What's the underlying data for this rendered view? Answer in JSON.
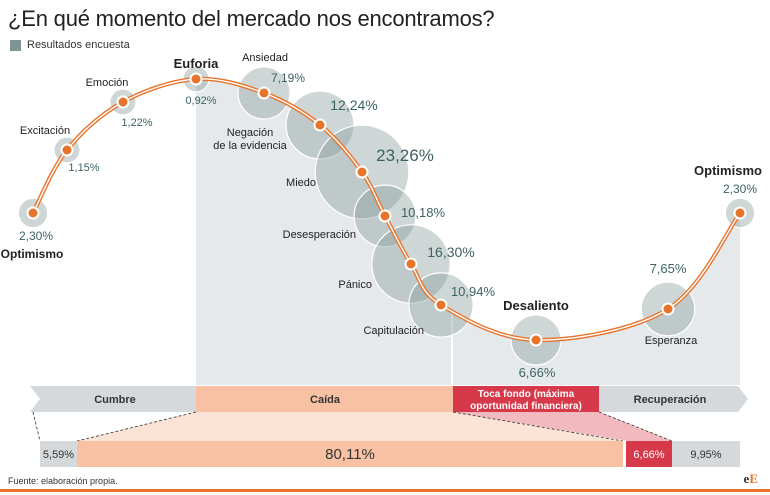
{
  "title": "¿En qué momento del mercado nos encontramos?",
  "legend": {
    "label": "Resultados encuesta",
    "color": "#7f9494"
  },
  "source": "Fuente: elaboración propia.",
  "brand": {
    "prefix": "e",
    "accent": "E"
  },
  "colors": {
    "curve": "#e8742c",
    "bubble": "#8a9d9d",
    "value_text": "#3d6262",
    "phase_grey": "#d5d9dc",
    "phase_caida": "#f8c1a3",
    "phase_fondo": "#d63a4a"
  },
  "chart_data": {
    "type": "scatter",
    "title": "¿En qué momento del mercado nos encontramos?",
    "series": [
      {
        "name": "Resultados encuesta"
      }
    ],
    "points": [
      {
        "stage": "Optimismo",
        "value": 2.3,
        "label": "2,30%"
      },
      {
        "stage": "Excitación",
        "value": 1.15,
        "label": "1,15%"
      },
      {
        "stage": "Emoción",
        "value": 1.22,
        "label": "1,22%"
      },
      {
        "stage": "Euforia",
        "value": 0.92,
        "label": "0,92%"
      },
      {
        "stage": "Ansiedad",
        "value": 7.19,
        "label": "7,19%"
      },
      {
        "stage": "Negación de la evidencia",
        "value": 12.24,
        "label": "12,24%"
      },
      {
        "stage": "Miedo",
        "value": 23.26,
        "label": "23,26%"
      },
      {
        "stage": "Desesperación",
        "value": 10.18,
        "label": "10,18%"
      },
      {
        "stage": "Pánico",
        "value": 16.3,
        "label": "16,30%"
      },
      {
        "stage": "Capitulación",
        "value": 10.94,
        "label": "10,94%"
      },
      {
        "stage": "Desaliento",
        "value": 6.66,
        "label": "6,66%"
      },
      {
        "stage": "Esperanza",
        "value": 7.65,
        "label": "7,65%"
      },
      {
        "stage": "Optimismo",
        "value": 2.3,
        "label": "2,30%"
      }
    ],
    "phases": [
      {
        "name": "Cumbre",
        "total": 5.59,
        "total_label": "5,59%"
      },
      {
        "name": "Caída",
        "total": 80.11,
        "total_label": "80,11%"
      },
      {
        "name": "Toca fondo (máxima oportunidad financiera)",
        "total": 6.66,
        "total_label": "6,66%"
      },
      {
        "name": "Recuperación",
        "total": 9.95,
        "total_label": "9,95%"
      }
    ]
  }
}
